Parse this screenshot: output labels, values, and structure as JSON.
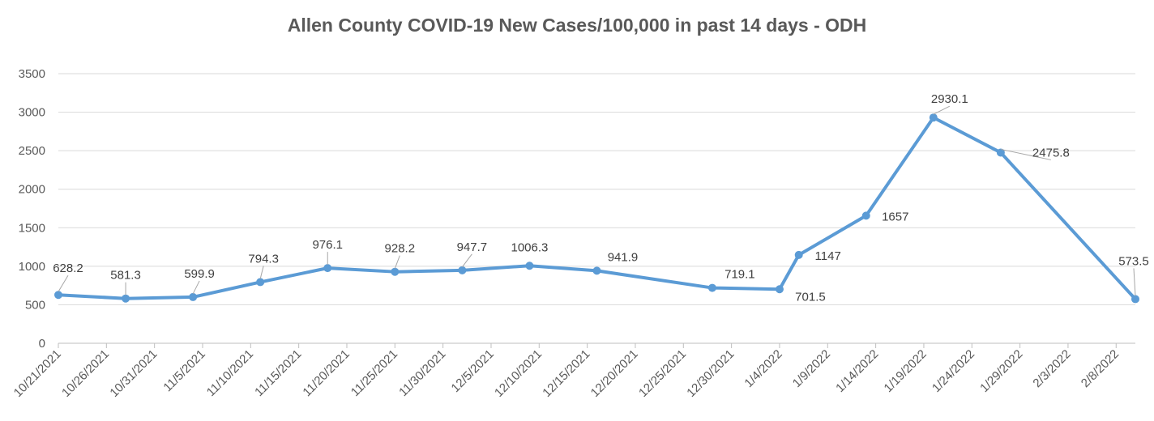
{
  "chart_data": {
    "type": "line",
    "title": "Allen County COVID-19 New Cases/100,000 in past 14 days - ODH",
    "xlabel": "",
    "ylabel": "",
    "ylim": [
      0,
      3500
    ],
    "yticks": [
      0,
      500,
      1000,
      1500,
      2000,
      2500,
      3000,
      3500
    ],
    "xlim": [
      "10/21/2021",
      "2/10/2022"
    ],
    "xticks": [
      "10/21/2021",
      "10/26/2021",
      "10/31/2021",
      "11/5/2021",
      "11/10/2021",
      "11/15/2021",
      "11/20/2021",
      "11/25/2021",
      "11/30/2021",
      "12/5/2021",
      "12/10/2021",
      "12/15/2021",
      "12/20/2021",
      "12/25/2021",
      "12/30/2021",
      "1/4/2022",
      "1/9/2022",
      "1/14/2022",
      "1/19/2022",
      "1/24/2022",
      "1/29/2022",
      "2/3/2022",
      "2/8/2022"
    ],
    "grid": true,
    "series": [
      {
        "color": "#5b9bd5",
        "points": [
          {
            "x": "10/21/2021",
            "y": 628.2,
            "label": "628.2"
          },
          {
            "x": "10/28/2021",
            "y": 581.3,
            "label": "581.3"
          },
          {
            "x": "11/4/2021",
            "y": 599.9,
            "label": "599.9"
          },
          {
            "x": "11/11/2021",
            "y": 794.3,
            "label": "794.3"
          },
          {
            "x": "11/18/2021",
            "y": 976.1,
            "label": "976.1"
          },
          {
            "x": "11/25/2021",
            "y": 928.2,
            "label": "928.2"
          },
          {
            "x": "12/2/2021",
            "y": 947.7,
            "label": "947.7"
          },
          {
            "x": "12/9/2021",
            "y": 1006.3,
            "label": "1006.3"
          },
          {
            "x": "12/16/2021",
            "y": 941.9,
            "label": "941.9"
          },
          {
            "x": "12/28/2021",
            "y": 719.1,
            "label": "719.1"
          },
          {
            "x": "1/4/2022",
            "y": 701.5,
            "label": "701.5"
          },
          {
            "x": "1/6/2022",
            "y": 1147,
            "label": "1147"
          },
          {
            "x": "1/13/2022",
            "y": 1657,
            "label": "1657"
          },
          {
            "x": "1/20/2022",
            "y": 2930.1,
            "label": "2930.1"
          },
          {
            "x": "1/27/2022",
            "y": 2475.8,
            "label": "2475.8"
          },
          {
            "x": "2/10/2022",
            "y": 573.5,
            "label": "573.5"
          }
        ]
      }
    ]
  }
}
